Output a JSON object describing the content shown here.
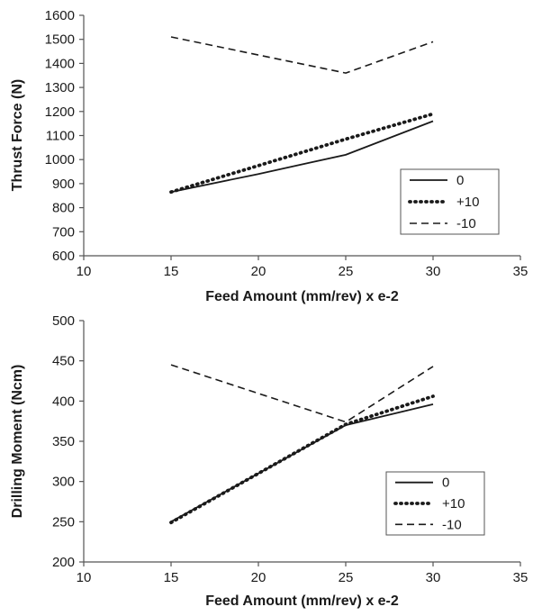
{
  "chart_data": [
    {
      "type": "line",
      "xlabel": "Feed Amount (mm/rev) x e-2",
      "ylabel": "Thrust Force (N)",
      "xlim": [
        10,
        35
      ],
      "ylim": [
        600,
        1600
      ],
      "xticks": [
        10,
        15,
        20,
        25,
        30,
        35
      ],
      "yticks": [
        600,
        700,
        800,
        900,
        1000,
        1100,
        1200,
        1300,
        1400,
        1500,
        1600
      ],
      "grid": false,
      "legend_position": "bottom-right",
      "series": [
        {
          "name": "0",
          "style": "solid",
          "x": [
            15,
            20,
            22.5,
            25,
            30
          ],
          "values": [
            865,
            940,
            980,
            1020,
            1160
          ]
        },
        {
          "name": "+10",
          "style": "dotted",
          "x": [
            15,
            20,
            25,
            30
          ],
          "values": [
            865,
            975,
            1085,
            1190
          ]
        },
        {
          "name": "-10",
          "style": "dashed",
          "x": [
            15,
            25,
            30
          ],
          "values": [
            1510,
            1360,
            1490
          ]
        }
      ]
    },
    {
      "type": "line",
      "xlabel": "Feed Amount (mm/rev) x e-2",
      "ylabel": "Drilling Moment (Ncm)",
      "xlim": [
        10,
        35
      ],
      "ylim": [
        200,
        500
      ],
      "xticks": [
        10,
        15,
        20,
        25,
        30,
        35
      ],
      "yticks": [
        200,
        250,
        300,
        350,
        400,
        450,
        500
      ],
      "grid": false,
      "legend_position": "bottom-right",
      "series": [
        {
          "name": "0",
          "style": "solid",
          "x": [
            15,
            25,
            30
          ],
          "values": [
            250,
            370,
            396
          ]
        },
        {
          "name": "+10",
          "style": "dotted",
          "x": [
            15,
            25,
            30
          ],
          "values": [
            249,
            371,
            406
          ]
        },
        {
          "name": "-10",
          "style": "dashed",
          "x": [
            15,
            25,
            30
          ],
          "values": [
            445,
            374,
            443
          ]
        }
      ]
    }
  ]
}
